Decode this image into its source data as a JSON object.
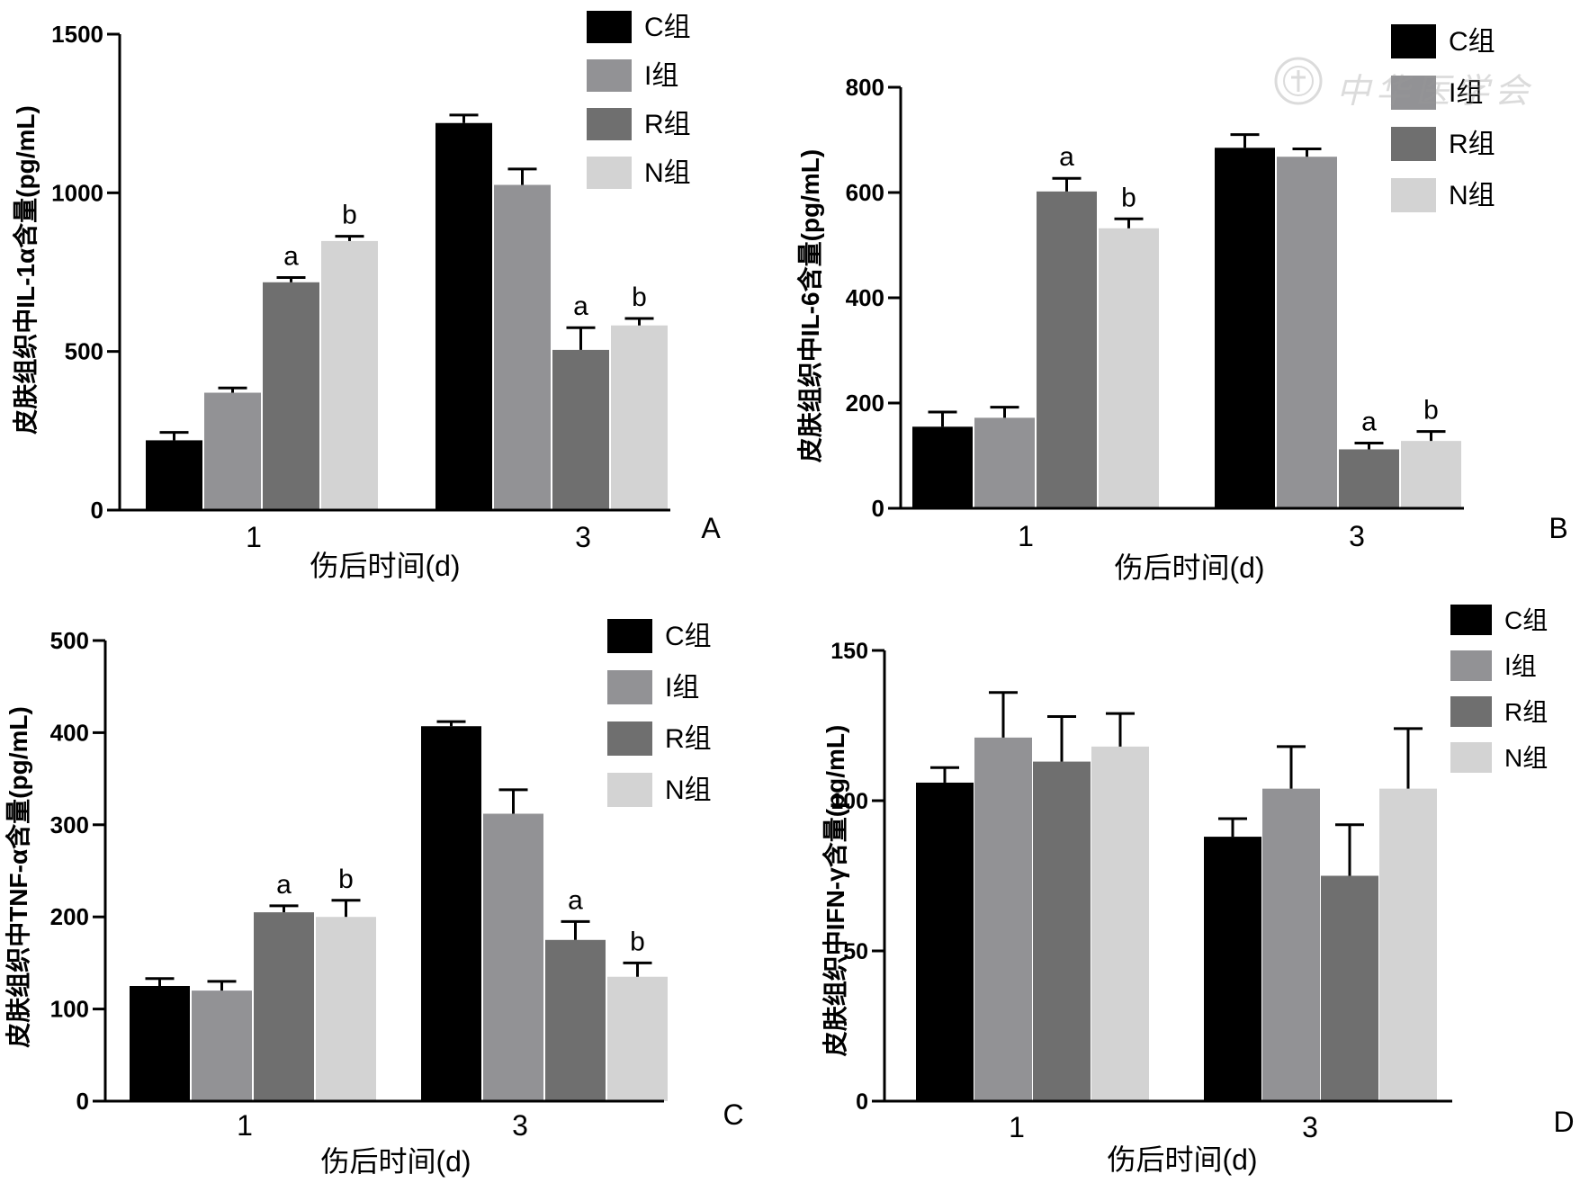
{
  "watermark": {
    "text": "中华医学会"
  },
  "colors": {
    "C": "#000000",
    "I": "#929295",
    "R": "#6f6f6f",
    "N": "#d3d3d3",
    "axis": "#000000"
  },
  "chart_data": [
    {
      "id": "A",
      "type": "bar",
      "panel_label": "A",
      "ylabel": "皮肤组织中IL-1α含量(pg/mL)",
      "xlabel": "伤后时间(d)",
      "ylim": [
        0,
        1500
      ],
      "yticks": [
        0,
        500,
        1000,
        1500
      ],
      "categories": [
        "1",
        "3"
      ],
      "legend": [
        "C组",
        "I组",
        "R组",
        "N组"
      ],
      "series": [
        {
          "name": "C组",
          "key": "C",
          "values": [
            220,
            1220
          ],
          "errors": [
            25,
            25
          ],
          "annotations": [
            "",
            ""
          ]
        },
        {
          "name": "I组",
          "key": "I",
          "values": [
            370,
            1025
          ],
          "errors": [
            15,
            50
          ],
          "annotations": [
            "",
            ""
          ]
        },
        {
          "name": "R组",
          "key": "R",
          "values": [
            718,
            505
          ],
          "errors": [
            15,
            70
          ],
          "annotations": [
            "a",
            "a"
          ]
        },
        {
          "name": "N组",
          "key": "N",
          "values": [
            848,
            582
          ],
          "errors": [
            15,
            22
          ],
          "annotations": [
            "b",
            "b"
          ]
        }
      ]
    },
    {
      "id": "B",
      "type": "bar",
      "panel_label": "B",
      "ylabel": "皮肤组织中IL-6含量(pg/mL)",
      "xlabel": "伤后时间(d)",
      "ylim": [
        0,
        800
      ],
      "yticks": [
        0,
        200,
        400,
        600,
        800
      ],
      "categories": [
        "1",
        "3"
      ],
      "legend": [
        "C组",
        "I组",
        "R组",
        "N组"
      ],
      "series": [
        {
          "name": "C组",
          "key": "C",
          "values": [
            155,
            685
          ],
          "errors": [
            28,
            25
          ],
          "annotations": [
            "",
            ""
          ]
        },
        {
          "name": "I组",
          "key": "I",
          "values": [
            172,
            668
          ],
          "errors": [
            20,
            15
          ],
          "annotations": [
            "",
            ""
          ]
        },
        {
          "name": "R组",
          "key": "R",
          "values": [
            602,
            112
          ],
          "errors": [
            25,
            12
          ],
          "annotations": [
            "a",
            "a"
          ]
        },
        {
          "name": "N组",
          "key": "N",
          "values": [
            532,
            128
          ],
          "errors": [
            18,
            18
          ],
          "annotations": [
            "b",
            "b"
          ]
        }
      ]
    },
    {
      "id": "C",
      "type": "bar",
      "panel_label": "C",
      "ylabel": "皮肤组织中TNF-α含量(pg/mL)",
      "xlabel": "伤后时间(d)",
      "ylim": [
        0,
        500
      ],
      "yticks": [
        0,
        100,
        200,
        300,
        400,
        500
      ],
      "categories": [
        "1",
        "3"
      ],
      "legend": [
        "C组",
        "I组",
        "R组",
        "N组"
      ],
      "series": [
        {
          "name": "C组",
          "key": "C",
          "values": [
            125,
            407
          ],
          "errors": [
            8,
            5
          ],
          "annotations": [
            "",
            ""
          ]
        },
        {
          "name": "I组",
          "key": "I",
          "values": [
            120,
            312
          ],
          "errors": [
            10,
            26
          ],
          "annotations": [
            "",
            ""
          ]
        },
        {
          "name": "R组",
          "key": "R",
          "values": [
            205,
            175
          ],
          "errors": [
            7,
            20
          ],
          "annotations": [
            "a",
            "a"
          ]
        },
        {
          "name": "N组",
          "key": "N",
          "values": [
            200,
            135
          ],
          "errors": [
            18,
            15
          ],
          "annotations": [
            "b",
            "b"
          ]
        }
      ]
    },
    {
      "id": "D",
      "type": "bar",
      "panel_label": "D",
      "ylabel": "皮肤组织中IFN-γ含量(pg/mL)",
      "xlabel": "伤后时间(d)",
      "ylim": [
        0,
        150
      ],
      "yticks": [
        0,
        50,
        100,
        150
      ],
      "categories": [
        "1",
        "3"
      ],
      "legend": [
        "C组",
        "I组",
        "R组",
        "N组"
      ],
      "series": [
        {
          "name": "C组",
          "key": "C",
          "values": [
            106,
            88
          ],
          "errors": [
            5,
            6
          ],
          "annotations": [
            "",
            ""
          ]
        },
        {
          "name": "I组",
          "key": "I",
          "values": [
            121,
            104
          ],
          "errors": [
            15,
            14
          ],
          "annotations": [
            "",
            ""
          ]
        },
        {
          "name": "R组",
          "key": "R",
          "values": [
            113,
            75
          ],
          "errors": [
            15,
            17
          ],
          "annotations": [
            "",
            ""
          ]
        },
        {
          "name": "N组",
          "key": "N",
          "values": [
            118,
            104
          ],
          "errors": [
            11,
            20
          ],
          "annotations": [
            "",
            ""
          ]
        }
      ]
    }
  ]
}
